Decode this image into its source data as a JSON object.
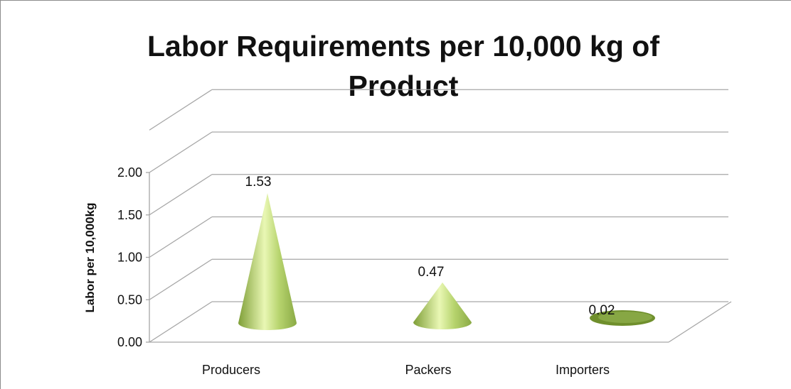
{
  "chart_data": {
    "type": "bar",
    "style": "3d-cone",
    "title": "Labor Requirements per 10,000 kg of\nProduct",
    "xlabel": "",
    "ylabel": "Labor per 10,000kg",
    "categories": [
      "Producers",
      "Packers",
      "Importers"
    ],
    "values": [
      1.53,
      0.47,
      0.02
    ],
    "data_labels": [
      "1.53",
      "0.47",
      "0.02"
    ],
    "ylim": [
      0,
      2
    ],
    "yticks": [
      "0.00",
      "0.50",
      "1.00",
      "1.50",
      "2.00"
    ],
    "grid": true,
    "legend": "none",
    "colors": {
      "cone": "#9bbb59",
      "cone_light": "#e8f5b0",
      "cone_dark": "#6f8f2c",
      "grid": "#a6a6a6"
    }
  }
}
